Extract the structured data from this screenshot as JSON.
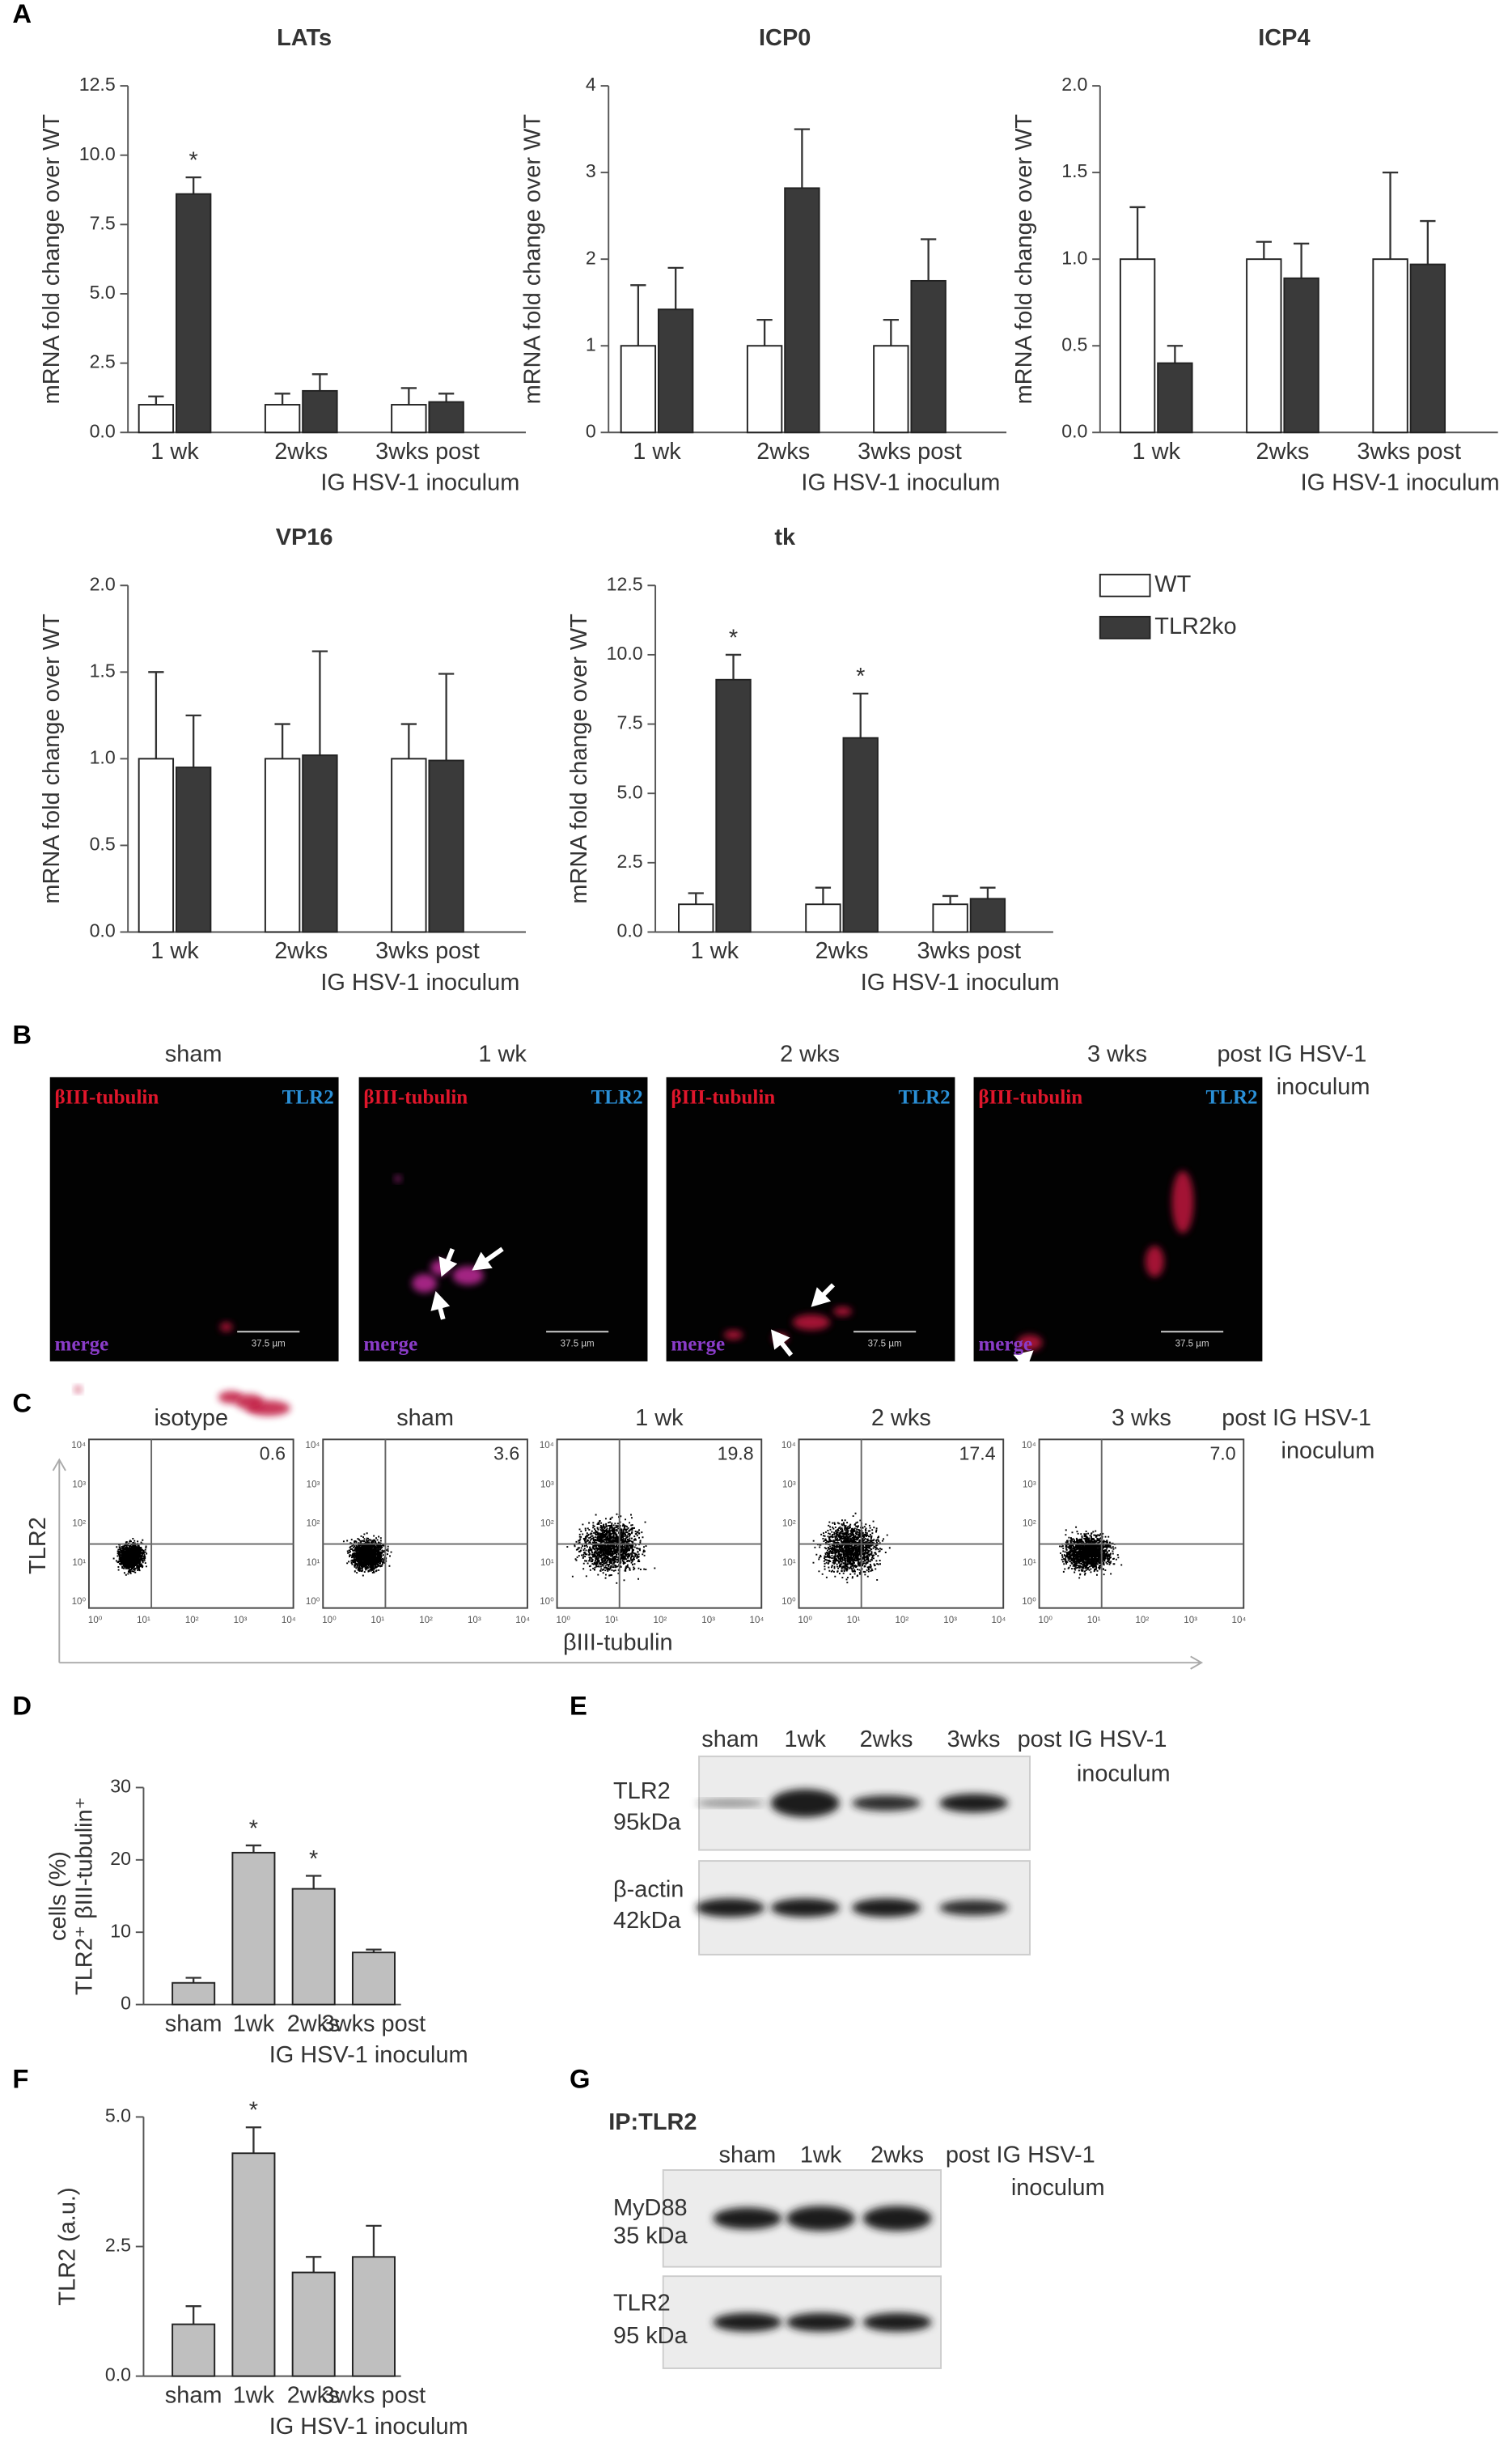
{
  "panel_labels": [
    "A",
    "B",
    "C",
    "D",
    "E",
    "F",
    "G"
  ],
  "chart_data": [
    {
      "type": "bar",
      "title": "LATs",
      "y_label": "mRNA fold change over WT",
      "x_label": "IG HSV-1 inoculum",
      "categories": [
        "1 wk",
        "2wks",
        "3wks post"
      ],
      "ylim": [
        0,
        12.5
      ],
      "yticks": [
        {
          "value": 0,
          "label": "0.0"
        },
        2.5,
        {
          "value": 5,
          "label": "5.0"
        },
        7.5,
        {
          "value": 10,
          "label": "10.0"
        },
        12.5
      ],
      "series": [
        {
          "color": "#ffffff",
          "values": [
            1,
            1,
            1
          ],
          "errors": [
            0.3,
            0.4,
            0.6
          ]
        },
        {
          "color": "#3a3a3a",
          "values": [
            8.6,
            1.5,
            1.1
          ],
          "errors": [
            0.6,
            0.6,
            0.3
          ],
          "annotations": [
            "*",
            null,
            null
          ]
        }
      ]
    },
    {
      "type": "bar",
      "title": "ICP0",
      "y_label": "mRNA fold change over WT",
      "x_label": "IG HSV-1 inoculum",
      "categories": [
        "1 wk",
        "2wks",
        "3wks post"
      ],
      "ylim": [
        0,
        4
      ],
      "yticks": [
        0,
        1,
        2,
        3,
        4
      ],
      "series": [
        {
          "color": "#ffffff",
          "values": [
            1,
            1,
            1
          ],
          "errors": [
            0.7,
            0.3,
            0.3
          ]
        },
        {
          "color": "#3a3a3a",
          "values": [
            1.42,
            2.82,
            1.75
          ],
          "errors": [
            0.48,
            0.68,
            0.48
          ]
        }
      ]
    },
    {
      "type": "bar",
      "title": "ICP4",
      "y_label": "mRNA fold change over WT",
      "x_label": "IG HSV-1 inoculum",
      "categories": [
        "1 wk",
        "2wks",
        "3wks post"
      ],
      "ylim": [
        0,
        2
      ],
      "yticks": [
        {
          "value": 0,
          "label": "0.0"
        },
        0.5,
        {
          "value": 1,
          "label": "1.0"
        },
        1.5,
        {
          "value": 2,
          "label": "2.0"
        }
      ],
      "series": [
        {
          "color": "#ffffff",
          "values": [
            1,
            1,
            1
          ],
          "errors": [
            0.3,
            0.1,
            0.5
          ]
        },
        {
          "color": "#3a3a3a",
          "values": [
            0.4,
            0.89,
            0.97
          ],
          "errors": [
            0.1,
            0.2,
            0.25
          ]
        }
      ]
    },
    {
      "type": "bar",
      "title": "VP16",
      "y_label": "mRNA fold change over WT",
      "x_label": "IG HSV-1 inoculum",
      "categories": [
        "1 wk",
        "2wks",
        "3wks post"
      ],
      "ylim": [
        0,
        2
      ],
      "yticks": [
        {
          "value": 0,
          "label": "0.0"
        },
        0.5,
        {
          "value": 1,
          "label": "1.0"
        },
        1.5,
        {
          "value": 2,
          "label": "2.0"
        }
      ],
      "series": [
        {
          "color": "#ffffff",
          "values": [
            1,
            1,
            1
          ],
          "errors": [
            0.5,
            0.2,
            0.2
          ]
        },
        {
          "color": "#3a3a3a",
          "values": [
            0.95,
            1.02,
            0.99
          ],
          "errors": [
            0.3,
            0.6,
            0.5
          ]
        }
      ]
    },
    {
      "type": "bar",
      "title": "tk",
      "y_label": "mRNA fold change over WT",
      "x_label": "IG HSV-1 inoculum",
      "categories": [
        "1 wk",
        "2wks",
        "3wks post"
      ],
      "ylim": [
        0,
        12.5
      ],
      "yticks": [
        {
          "value": 0,
          "label": "0.0"
        },
        2.5,
        {
          "value": 5,
          "label": "5.0"
        },
        7.5,
        {
          "value": 10,
          "label": "10.0"
        },
        12.5
      ],
      "series": [
        {
          "name": "WT",
          "color": "#ffffff",
          "values": [
            1,
            1,
            1
          ],
          "errors": [
            0.4,
            0.6,
            0.3
          ]
        },
        {
          "name": "TLR2ko",
          "color": "#3a3a3a",
          "values": [
            9.1,
            7.0,
            1.2
          ],
          "errors": [
            0.9,
            1.6,
            0.4
          ],
          "annotations": [
            "*",
            "*",
            null
          ]
        }
      ]
    },
    {
      "type": "bar",
      "y_label": [
        "TLR2⁺ βIII-tubulin⁺",
        "cells (%)"
      ],
      "x_label": "IG HSV-1 inoculum",
      "categories": [
        "sham",
        "1wk",
        "2wks",
        "3wks post"
      ],
      "ylim": [
        0,
        30
      ],
      "yticks": [
        0,
        10,
        20,
        30
      ],
      "series": [
        {
          "color": "#bfbfbf",
          "values": [
            3,
            21,
            16,
            7.2
          ],
          "errors": [
            0.7,
            1,
            1.8,
            0.4
          ],
          "annotations": [
            null,
            "*",
            "*",
            null
          ]
        }
      ]
    },
    {
      "type": "bar",
      "y_label": [
        "TLR2 (a.u.)"
      ],
      "x_label": "IG HSV-1 inoculum",
      "categories": [
        "sham",
        "1wk",
        "2wks",
        "3wks post"
      ],
      "ylim": [
        0,
        5
      ],
      "yticks": [
        {
          "value": 0,
          "label": "0.0"
        },
        2.5,
        {
          "value": 5,
          "label": "5.0"
        }
      ],
      "series": [
        {
          "color": "#bfbfbf",
          "values": [
            1,
            4.3,
            2,
            2.3
          ],
          "errors": [
            0.35,
            0.5,
            0.3,
            0.6
          ],
          "annotations": [
            null,
            "*",
            null,
            null
          ]
        }
      ]
    }
  ],
  "microscopy": {
    "timepoints": [
      "sham",
      "1 wk",
      "2 wks",
      "3 wks"
    ],
    "caption": [
      "post IG HSV-1",
      "inoculum"
    ],
    "red_channel": "βIII-tubulin",
    "blue_channel": "TLR2",
    "merge": "merge",
    "scale_bar": "37.5 µm"
  },
  "flow": {
    "plots": [
      {
        "title": "isotype",
        "quadrant": "0.6"
      },
      {
        "title": "sham",
        "quadrant": "3.6"
      },
      {
        "title": "1 wk",
        "quadrant": "19.8"
      },
      {
        "title": "2 wks",
        "quadrant": "17.4"
      },
      {
        "title": "3 wks",
        "quadrant": "7.0"
      }
    ],
    "caption": [
      "post IG  HSV-1",
      "inoculum"
    ],
    "y_label": "TLR2",
    "x_label": "βIII-tubulin",
    "ticks": [
      "10⁰",
      "10¹",
      "10²",
      "10³",
      "10⁴"
    ]
  },
  "blot_e": {
    "lanes": [
      "sham",
      "1wk",
      "2wks",
      "3wks"
    ],
    "caption": [
      "post IG  HSV-1",
      "inoculum"
    ],
    "rows": [
      [
        "TLR2",
        "95kDa"
      ],
      [
        "β-actin",
        "42kDa"
      ]
    ]
  },
  "blot_g": {
    "header": "IP:TLR2",
    "lanes": [
      "sham",
      "1wk",
      "2wks"
    ],
    "caption": [
      "post IG HSV-1",
      "inoculum"
    ],
    "rows": [
      [
        "MyD88",
        "35 kDa"
      ],
      [
        "TLR2",
        "95 kDa"
      ]
    ]
  }
}
